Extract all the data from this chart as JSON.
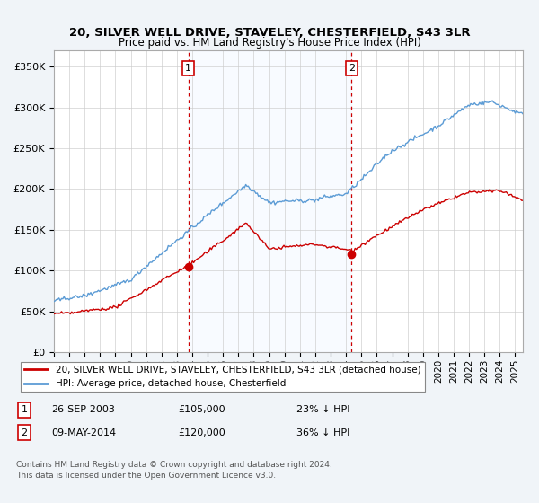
{
  "title": "20, SILVER WELL DRIVE, STAVELEY, CHESTERFIELD, S43 3LR",
  "subtitle": "Price paid vs. HM Land Registry's House Price Index (HPI)",
  "ylabel_ticks": [
    "£0",
    "£50K",
    "£100K",
    "£150K",
    "£200K",
    "£250K",
    "£300K",
    "£350K"
  ],
  "ytick_values": [
    0,
    50000,
    100000,
    150000,
    200000,
    250000,
    300000,
    350000
  ],
  "ylim": [
    0,
    370000
  ],
  "xlim_start": 1995.0,
  "xlim_end": 2025.5,
  "sale1_x": 2003.74,
  "sale1_y": 105000,
  "sale1_label": "1",
  "sale1_date": "26-SEP-2003",
  "sale1_price": "£105,000",
  "sale1_hpi": "23% ↓ HPI",
  "sale2_x": 2014.36,
  "sale2_y": 120000,
  "sale2_label": "2",
  "sale2_date": "09-MAY-2014",
  "sale2_price": "£120,000",
  "sale2_hpi": "36% ↓ HPI",
  "line_property_color": "#cc0000",
  "line_hpi_color": "#5b9bd5",
  "shade_color": "#ddeeff",
  "legend_property": "20, SILVER WELL DRIVE, STAVELEY, CHESTERFIELD, S43 3LR (detached house)",
  "legend_hpi": "HPI: Average price, detached house, Chesterfield",
  "footer1": "Contains HM Land Registry data © Crown copyright and database right 2024.",
  "footer2": "This data is licensed under the Open Government Licence v3.0.",
  "background_color": "#f0f4f8",
  "plot_bg_color": "#ffffff",
  "grid_color": "#cccccc"
}
